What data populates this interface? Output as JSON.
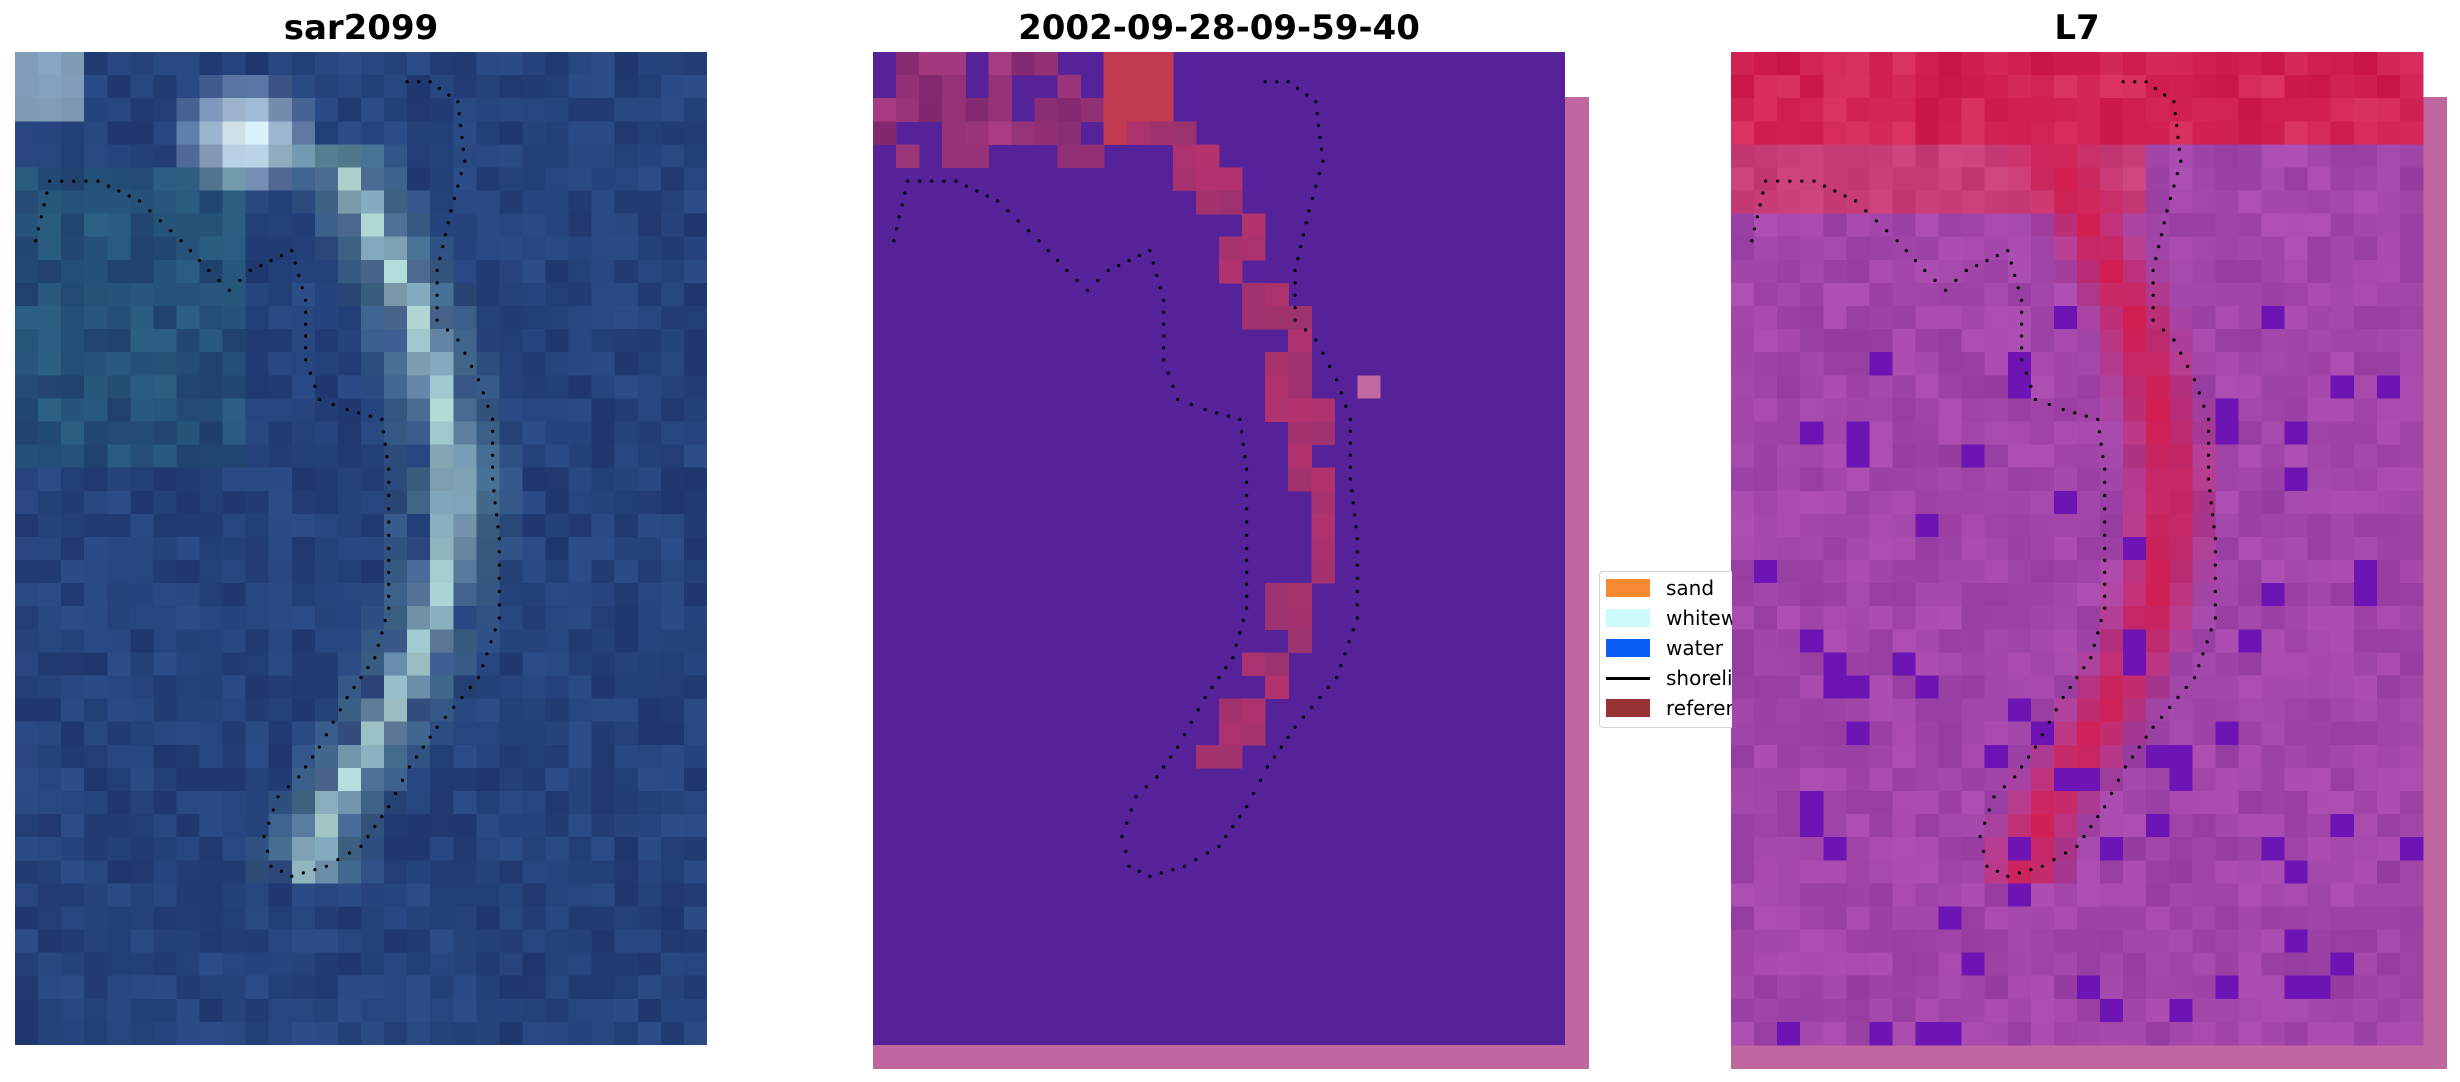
{
  "panels": [
    {
      "title": "sar2099"
    },
    {
      "title": "2002-09-28-09-59-40"
    },
    {
      "title": "L7"
    }
  ],
  "legend": {
    "items": [
      {
        "label": "sand",
        "color": "#f58a33",
        "kind": "patch"
      },
      {
        "label": "whitewater",
        "color": "#cdfafa",
        "kind": "patch"
      },
      {
        "label": "water",
        "color": "#0a5ef5",
        "kind": "patch"
      },
      {
        "label": "shoreline",
        "color": "#000000",
        "kind": "line"
      },
      {
        "label": "reference",
        "color": "#993333",
        "kind": "patch"
      }
    ]
  },
  "colors": {
    "rgb_water": "#1e3a6e",
    "class_background": "#55229a",
    "class_sand": "#c0394a",
    "index_background": "#a04aa8",
    "index_high": "#d21a4a",
    "edge_strip": "#c0679f",
    "shoreline": "#000000"
  }
}
